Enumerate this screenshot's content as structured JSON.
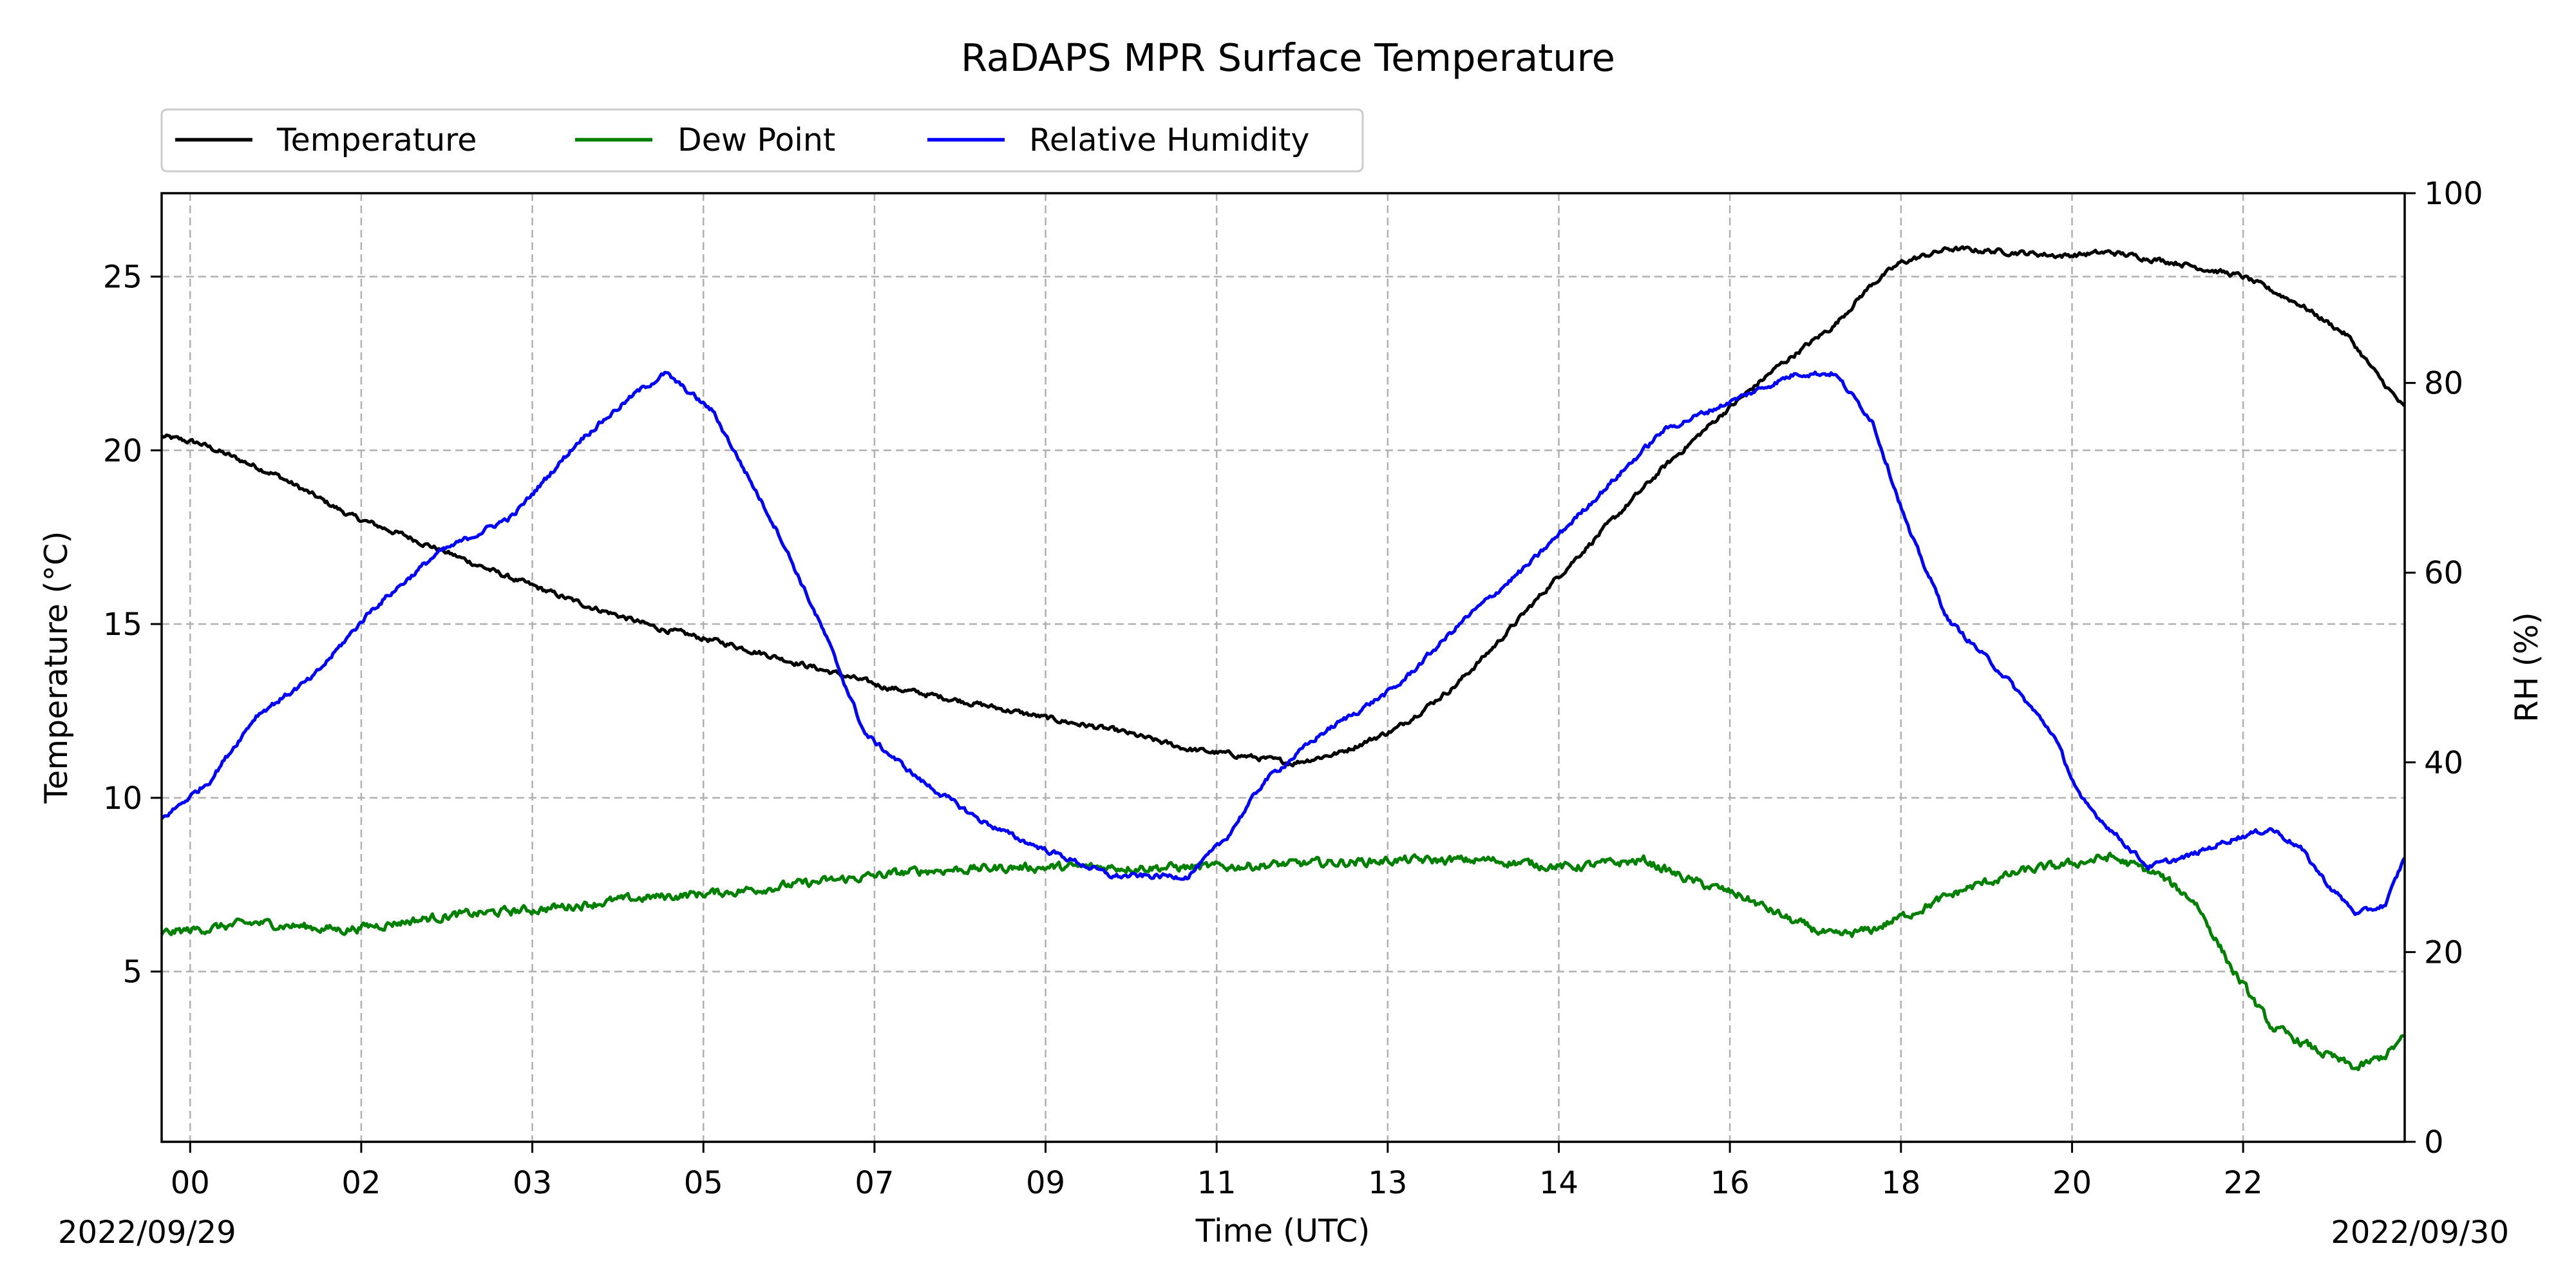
{
  "chart_data": {
    "type": "line",
    "title": "RaDAPS MPR Surface Temperature",
    "xlabel": "Time (UTC)",
    "ylabel": "Temperature (°C)",
    "ylabel_right": "RH (%)",
    "x_ticks": [
      "00",
      "02",
      "03",
      "05",
      "07",
      "09",
      "11",
      "13",
      "14",
      "16",
      "18",
      "20",
      "22"
    ],
    "x_tick_hours": [
      0.3,
      2.1,
      3.9,
      5.7,
      7.5,
      9.3,
      11.1,
      12.9,
      14.7,
      16.5,
      18.3,
      20.1,
      21.9
    ],
    "xlim": [
      0,
      23.6
    ],
    "date_start": "2022/09/29",
    "date_end": "2022/09/30",
    "ylim": [
      0.1,
      27.4
    ],
    "y_ticks": [
      5,
      10,
      15,
      20,
      25
    ],
    "ylim_right": [
      0,
      100
    ],
    "y_ticks_right": [
      0,
      20,
      40,
      60,
      80,
      100
    ],
    "grid": true,
    "legend": "top-left, above plot",
    "series": [
      {
        "name": "Temperature",
        "color": "#000000",
        "axis": "left",
        "noise": 0.12,
        "x": [
          0,
          0.4,
          1.2,
          2.0,
          2.6,
          3.6,
          4.4,
          5.2,
          6.0,
          6.8,
          7.6,
          8.4,
          9.3,
          10.1,
          10.8,
          11.4,
          11.9,
          12.4,
          13.0,
          13.6,
          14.0,
          14.6,
          15.2,
          15.8,
          16.4,
          17.0,
          17.6,
          18.0,
          18.3,
          18.8,
          19.5,
          20.0,
          20.5,
          21.2,
          21.9,
          22.5,
          23.0,
          23.3,
          23.6
        ],
        "y": [
          20.4,
          20.2,
          19.3,
          18.1,
          17.5,
          16.4,
          15.6,
          14.9,
          14.4,
          13.8,
          13.2,
          12.8,
          12.3,
          11.9,
          11.4,
          11.2,
          11.0,
          11.3,
          12.0,
          13.2,
          14.3,
          16.1,
          17.8,
          19.5,
          21.0,
          22.4,
          23.6,
          24.8,
          25.4,
          25.8,
          25.7,
          25.6,
          25.7,
          25.4,
          25.0,
          24.2,
          23.3,
          22.2,
          21.2
        ]
      },
      {
        "name": "Dew Point",
        "color": "#008000",
        "axis": "left",
        "noise": 0.2,
        "x": [
          0,
          1.0,
          1.9,
          3.0,
          4.0,
          5.0,
          6.0,
          7.0,
          8.0,
          9.0,
          10.0,
          11.0,
          12.0,
          13.0,
          14.0,
          14.8,
          15.2,
          15.6,
          16.1,
          16.6,
          17.2,
          17.6,
          18.0,
          18.5,
          19.0,
          19.6,
          20.1,
          20.5,
          21.0,
          21.4,
          21.8,
          22.2,
          22.7,
          23.1,
          23.4,
          23.6
        ],
        "y": [
          6.1,
          6.4,
          6.2,
          6.6,
          6.8,
          7.1,
          7.3,
          7.6,
          7.9,
          8.0,
          8.0,
          8.0,
          8.1,
          8.2,
          8.2,
          8.0,
          8.1,
          8.2,
          7.6,
          7.2,
          6.4,
          6.0,
          6.2,
          6.8,
          7.4,
          7.9,
          8.1,
          8.3,
          7.8,
          7.0,
          5.0,
          3.4,
          2.7,
          2.2,
          2.6,
          3.1
        ]
      },
      {
        "name": "Relative Humidity",
        "color": "#0000ff",
        "axis": "right",
        "noise": 0.45,
        "x": [
          0,
          0.5,
          1.0,
          1.6,
          2.2,
          2.9,
          3.7,
          4.4,
          5.0,
          5.3,
          5.8,
          6.5,
          7.0,
          7.4,
          8.0,
          8.6,
          9.0,
          9.5,
          10.0,
          10.5,
          10.8,
          11.2,
          11.6,
          12.2,
          13.0,
          13.7,
          14.4,
          15.1,
          15.8,
          16.5,
          17.2,
          17.6,
          18.0,
          18.4,
          18.8,
          19.4,
          19.9,
          20.2,
          20.6,
          20.9,
          21.3,
          21.8,
          22.2,
          22.5,
          22.8,
          23.1,
          23.4,
          23.6
        ],
        "y": [
          34,
          38,
          45,
          49,
          56,
          62,
          66,
          74,
          79,
          81,
          77,
          64,
          53,
          43,
          38,
          34,
          32,
          30,
          28,
          28,
          28,
          32,
          38,
          43,
          48,
          55,
          61,
          68,
          75,
          78,
          81,
          81,
          76,
          64,
          55,
          49,
          43,
          36,
          32,
          29,
          30,
          32,
          33,
          31,
          27,
          24,
          25,
          30
        ]
      }
    ]
  }
}
